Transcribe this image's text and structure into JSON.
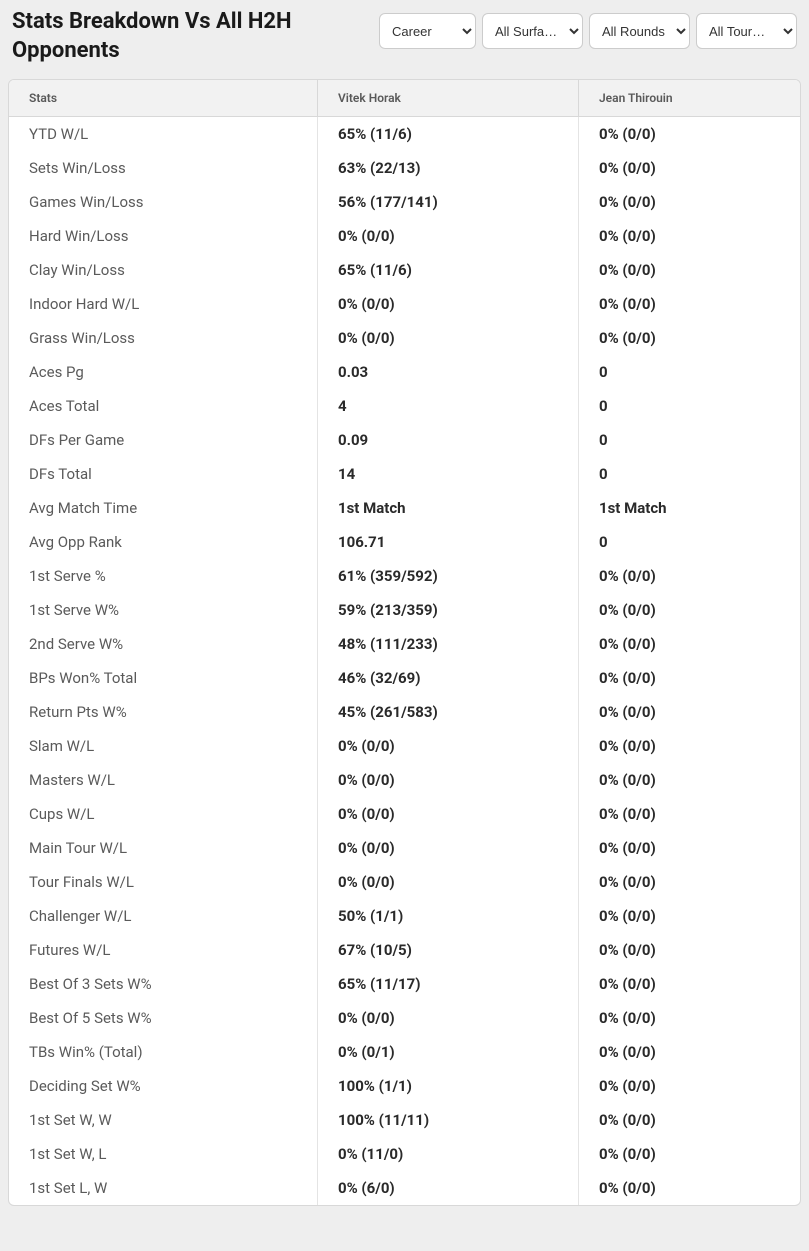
{
  "header": {
    "title": "Stats Breakdown Vs All H2H Opponents"
  },
  "filters": {
    "period": {
      "selected": "Career",
      "options": [
        "Career"
      ]
    },
    "surface": {
      "selected": "All Surfa…",
      "options": [
        "All Surfa…"
      ]
    },
    "rounds": {
      "selected": "All Rounds",
      "options": [
        "All Rounds"
      ]
    },
    "tour": {
      "selected": "All Tour…",
      "options": [
        "All Tour…"
      ]
    }
  },
  "table": {
    "columns": [
      "Stats",
      "Vitek Horak",
      "Jean Thirouin"
    ],
    "rows": [
      {
        "stat": "YTD W/L",
        "p1": "65% (11/6)",
        "p2": "0% (0/0)"
      },
      {
        "stat": "Sets Win/Loss",
        "p1": "63% (22/13)",
        "p2": "0% (0/0)"
      },
      {
        "stat": "Games Win/Loss",
        "p1": "56% (177/141)",
        "p2": "0% (0/0)"
      },
      {
        "stat": "Hard Win/Loss",
        "p1": "0% (0/0)",
        "p2": "0% (0/0)"
      },
      {
        "stat": "Clay Win/Loss",
        "p1": "65% (11/6)",
        "p2": "0% (0/0)"
      },
      {
        "stat": "Indoor Hard W/L",
        "p1": "0% (0/0)",
        "p2": "0% (0/0)"
      },
      {
        "stat": "Grass Win/Loss",
        "p1": "0% (0/0)",
        "p2": "0% (0/0)"
      },
      {
        "stat": "Aces Pg",
        "p1": "0.03",
        "p2": "0"
      },
      {
        "stat": "Aces Total",
        "p1": "4",
        "p2": "0"
      },
      {
        "stat": "DFs Per Game",
        "p1": "0.09",
        "p2": "0"
      },
      {
        "stat": "DFs Total",
        "p1": "14",
        "p2": "0"
      },
      {
        "stat": "Avg Match Time",
        "p1": "1st Match",
        "p2": "1st Match"
      },
      {
        "stat": "Avg Opp Rank",
        "p1": "106.71",
        "p2": "0"
      },
      {
        "stat": "1st Serve %",
        "p1": "61% (359/592)",
        "p2": "0% (0/0)"
      },
      {
        "stat": "1st Serve W%",
        "p1": "59% (213/359)",
        "p2": "0% (0/0)"
      },
      {
        "stat": "2nd Serve W%",
        "p1": "48% (111/233)",
        "p2": "0% (0/0)"
      },
      {
        "stat": "BPs Won% Total",
        "p1": "46% (32/69)",
        "p2": "0% (0/0)"
      },
      {
        "stat": "Return Pts W%",
        "p1": "45% (261/583)",
        "p2": "0% (0/0)"
      },
      {
        "stat": "Slam W/L",
        "p1": "0% (0/0)",
        "p2": "0% (0/0)"
      },
      {
        "stat": "Masters W/L",
        "p1": "0% (0/0)",
        "p2": "0% (0/0)"
      },
      {
        "stat": "Cups W/L",
        "p1": "0% (0/0)",
        "p2": "0% (0/0)"
      },
      {
        "stat": "Main Tour W/L",
        "p1": "0% (0/0)",
        "p2": "0% (0/0)"
      },
      {
        "stat": "Tour Finals W/L",
        "p1": "0% (0/0)",
        "p2": "0% (0/0)"
      },
      {
        "stat": "Challenger W/L",
        "p1": "50% (1/1)",
        "p2": "0% (0/0)"
      },
      {
        "stat": "Futures W/L",
        "p1": "67% (10/5)",
        "p2": "0% (0/0)"
      },
      {
        "stat": "Best Of 3 Sets W%",
        "p1": "65% (11/17)",
        "p2": "0% (0/0)"
      },
      {
        "stat": "Best Of 5 Sets W%",
        "p1": "0% (0/0)",
        "p2": "0% (0/0)"
      },
      {
        "stat": "TBs Win% (Total)",
        "p1": "0% (0/1)",
        "p2": "0% (0/0)"
      },
      {
        "stat": "Deciding Set W%",
        "p1": "100% (1/1)",
        "p2": "0% (0/0)"
      },
      {
        "stat": "1st Set W, W",
        "p1": "100% (11/11)",
        "p2": "0% (0/0)"
      },
      {
        "stat": "1st Set W, L",
        "p1": "0% (11/0)",
        "p2": "0% (0/0)"
      },
      {
        "stat": "1st Set L, W",
        "p1": "0% (6/0)",
        "p2": "0% (0/0)"
      }
    ]
  }
}
